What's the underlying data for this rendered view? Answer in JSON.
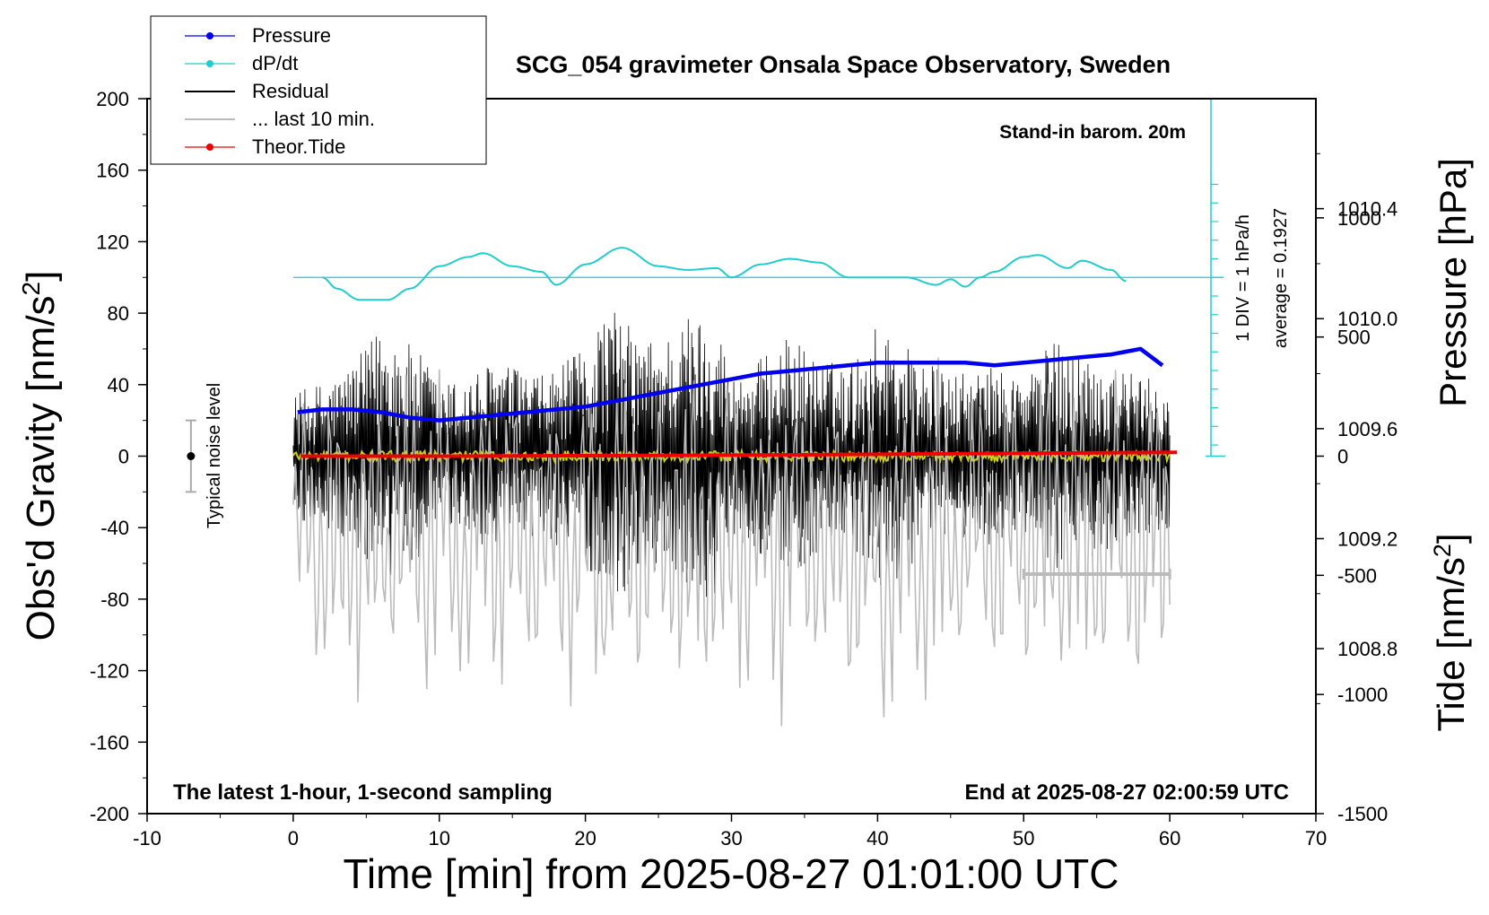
{
  "chart_data": {
    "type": "line",
    "title": "SCG_054 gravimeter Onsala Space Observatory, Sweden",
    "xlabel": "Time [min] from 2025-08-27 01:01:00 UTC",
    "ylabel": "Obs'd Gravity [nm/s",
    "ylabel_sup": "2",
    "ylabel_end": "]",
    "y2label": "Pressure [hPa]",
    "y3label": "Tide [nm/s",
    "y3label_sup": "2",
    "y3label_end": "]",
    "xlim": [
      -10,
      70
    ],
    "ylim": [
      -200,
      200
    ],
    "pressure_lim": [
      1008.2,
      1010.8
    ],
    "tide_lim": [
      -1500,
      1500
    ],
    "x_ticks": [
      "-10",
      "0",
      "10",
      "20",
      "30",
      "40",
      "50",
      "60",
      "70"
    ],
    "y_ticks": [
      "200",
      "160",
      "120",
      "80",
      "40",
      "0",
      "-40",
      "-80",
      "-120",
      "-160",
      "-200"
    ],
    "pressure_ticks": [
      "1010.4",
      "1010.0",
      "1009.6",
      "1009.2",
      "1008.8"
    ],
    "tide_ticks": [
      "1000",
      "500",
      "0",
      "-500",
      "-1000",
      "-1500"
    ],
    "legend": [
      {
        "label": "Pressure",
        "color": "#0000ee",
        "marker": true
      },
      {
        "label": "dP/dt",
        "color": "#22cccc",
        "marker": true
      },
      {
        "label": "Residual",
        "color": "#000000",
        "marker": false
      },
      {
        "label": "... last 10 min.",
        "color": "#bbbbbb",
        "marker": false
      },
      {
        "label": "Theor.Tide",
        "color": "#ee0000",
        "marker": true
      }
    ],
    "annotations": {
      "barometer": "Stand-in barom. 20m",
      "div_note": "1 DIV = 1 hPa/h",
      "average_note": "average = 0.1927",
      "noise_label": "Typical noise level",
      "bottom_left": "The latest 1-hour, 1-second sampling",
      "bottom_right": "End at 2025-08-27 02:00:59 UTC"
    },
    "series": [
      {
        "name": "Pressure",
        "unit": "hPa",
        "color": "#0000ee",
        "x": [
          0.3,
          2,
          4,
          6,
          8,
          10,
          12,
          14,
          16,
          18,
          20,
          22,
          24,
          26,
          28,
          30,
          32,
          34,
          36,
          38,
          40,
          42,
          44,
          46,
          48,
          50,
          52,
          54,
          56,
          57,
          58,
          59.5
        ],
        "values": [
          1009.66,
          1009.67,
          1009.67,
          1009.66,
          1009.64,
          1009.63,
          1009.64,
          1009.65,
          1009.66,
          1009.67,
          1009.68,
          1009.7,
          1009.72,
          1009.74,
          1009.76,
          1009.78,
          1009.8,
          1009.81,
          1009.82,
          1009.83,
          1009.84,
          1009.84,
          1009.84,
          1009.84,
          1009.83,
          1009.84,
          1009.85,
          1009.86,
          1009.87,
          1009.88,
          1009.89,
          1009.83
        ]
      },
      {
        "name": "dP/dt",
        "unit": "div (1 DIV = 1 hPa/h), baseline = average",
        "color": "#22cccc",
        "x": [
          2,
          3,
          4.5,
          6.5,
          8,
          10,
          12,
          13,
          15,
          17,
          18,
          20,
          22.5,
          25,
          27,
          29,
          30,
          32,
          34,
          36,
          38,
          40,
          42,
          44,
          45,
          46,
          47,
          48,
          50,
          51,
          53,
          54,
          56,
          57
        ],
        "values": [
          0.0,
          -0.6,
          -1.2,
          -1.2,
          -0.6,
          0.6,
          1.1,
          1.3,
          0.6,
          0.3,
          -0.4,
          0.7,
          1.6,
          0.6,
          0.4,
          0.5,
          0.0,
          0.7,
          1.0,
          0.8,
          0.0,
          0.0,
          0.0,
          -0.4,
          -0.1,
          -0.5,
          0.0,
          0.3,
          1.1,
          1.2,
          0.5,
          0.9,
          0.4,
          -0.2
        ]
      },
      {
        "name": "Residual",
        "unit": "nm/s2",
        "color": "#000000",
        "x_range": [
          0,
          60
        ],
        "envelope_x": [
          0,
          3,
          5,
          6,
          7,
          9,
          10,
          12,
          14,
          15,
          17,
          20,
          21,
          22,
          24,
          26,
          27,
          29,
          30,
          33,
          34,
          36,
          38,
          40,
          41,
          43,
          45,
          48,
          50,
          52,
          55,
          58,
          60
        ],
        "envelope_amp": [
          35,
          45,
          60,
          75,
          70,
          55,
          40,
          45,
          55,
          50,
          45,
          60,
          80,
          82,
          65,
          70,
          80,
          78,
          45,
          60,
          68,
          55,
          50,
          75,
          72,
          55,
          45,
          50,
          45,
          65,
          55,
          45,
          40
        ]
      },
      {
        "name": "Residual mean",
        "unit": "nm/s2",
        "color": "#cccc22",
        "x_range": [
          0,
          60
        ],
        "values": [
          0
        ]
      },
      {
        "name": "... last 10 min.",
        "unit": "nm/s2 (on tide axis)",
        "color": "#bbbbbb",
        "x_range": [
          0,
          60
        ],
        "amp_range": [
          -1050,
          350
        ],
        "peaks": [
          -850,
          300,
          -720,
          320,
          -900,
          350
        ]
      },
      {
        "name": "Theor.Tide",
        "unit": "nm/s2",
        "color": "#ee0000",
        "x": [
          0.5,
          10,
          20,
          30,
          40,
          50,
          60.5
        ],
        "values": [
          0,
          0,
          2,
          4,
          8,
          12,
          16
        ]
      }
    ],
    "last_10_min_bar": {
      "x": [
        50,
        60
      ],
      "value": -66
    },
    "noise_bar": {
      "x": -7,
      "center": 0,
      "half_range": 20
    }
  }
}
